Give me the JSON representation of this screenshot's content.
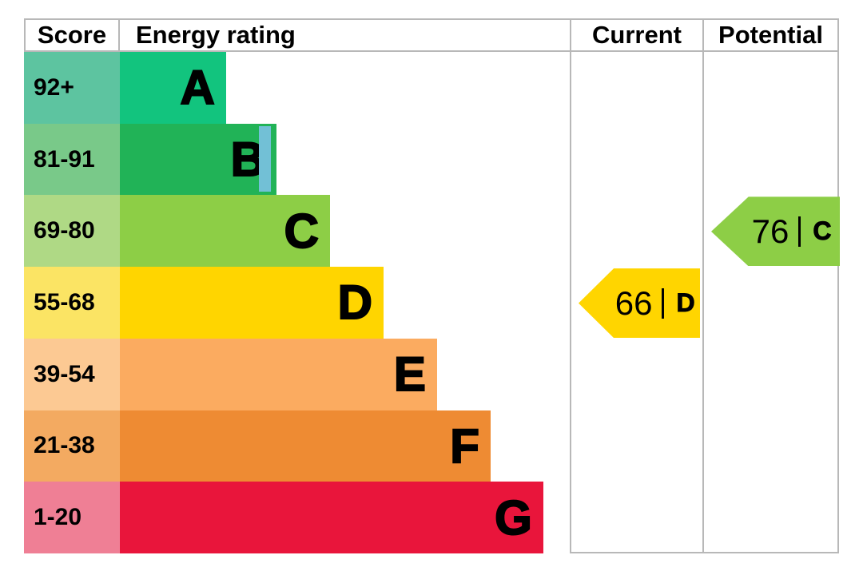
{
  "header": {
    "score": "Score",
    "energy_rating": "Energy rating",
    "current": "Current",
    "potential": "Potential"
  },
  "chart_data": {
    "type": "bar",
    "title": "Energy efficiency rating chart (EPC)",
    "orientation": "horizontal",
    "separator": "|",
    "bands": [
      {
        "score": "92+",
        "letter": "A",
        "bar_color": "#12c47e",
        "score_color": "#5dc4a0",
        "width_pct": 23.6
      },
      {
        "score": "81-91",
        "letter": "B",
        "bar_color": "#21b357",
        "score_color": "#79c989",
        "width_pct": 34.8
      },
      {
        "score": "69-80",
        "letter": "C",
        "bar_color": "#8dce46",
        "score_color": "#afd985",
        "width_pct": 46.7
      },
      {
        "score": "55-68",
        "letter": "D",
        "bar_color": "#ffd500",
        "score_color": "#fbe464",
        "width_pct": 58.6
      },
      {
        "score": "39-54",
        "letter": "E",
        "bar_color": "#fbab60",
        "score_color": "#fcc993",
        "width_pct": 70.5
      },
      {
        "score": "21-38",
        "letter": "F",
        "bar_color": "#ee8b33",
        "score_color": "#f3aa61",
        "width_pct": 82.4
      },
      {
        "score": "1-20",
        "letter": "G",
        "bar_color": "#e9153b",
        "score_color": "#ef7f95",
        "width_pct": 94.1
      }
    ],
    "current": {
      "value": "66",
      "band": "D",
      "color": "#ffd500",
      "row_index": 3
    },
    "potential": {
      "value": "76",
      "band": "C",
      "color": "#8dce46",
      "row_index": 2
    }
  },
  "colors": {
    "border": "#b8b8b8",
    "cursor_marker": "#72c0d6",
    "text": "#000000"
  }
}
